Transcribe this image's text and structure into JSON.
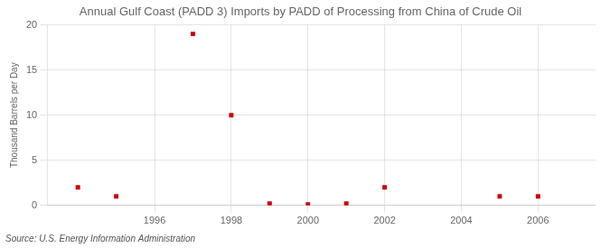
{
  "chart_data": {
    "type": "scatter",
    "title": "Annual Gulf Coast (PADD 3) Imports by PADD of Processing from China of Crude Oil",
    "ylabel": "Thousand Barrels per Day",
    "annotations": [
      "Source: U.S. Energy Information Administration"
    ],
    "x": [
      1994,
      1995,
      1997,
      1998,
      1999,
      2000,
      2001,
      2002,
      2005,
      2006
    ],
    "values": [
      2.0,
      1.0,
      19.0,
      10.0,
      0.2,
      0.1,
      0.2,
      2.0,
      1.0,
      1.0
    ],
    "color": "#cc0000",
    "marker": "square",
    "xlim": [
      1993.2,
      2007.5
    ],
    "xticks": [
      1996,
      1998,
      2000,
      2002,
      2004,
      2006
    ],
    "ylim": [
      0,
      20
    ],
    "yticks": [
      0,
      5,
      10,
      15,
      20
    ],
    "grid": true
  }
}
